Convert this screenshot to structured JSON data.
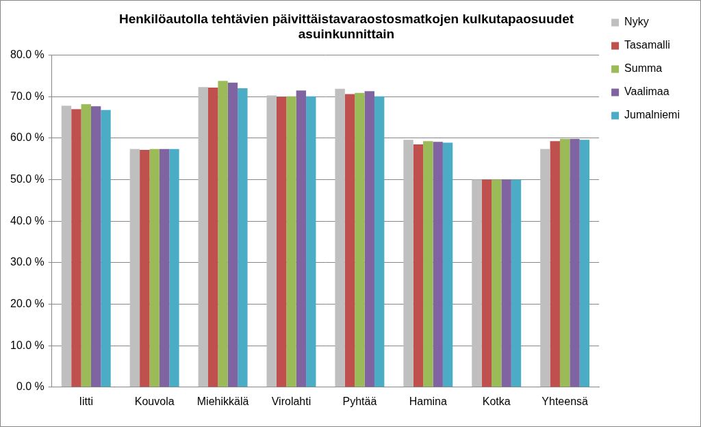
{
  "chart_data": {
    "type": "bar",
    "title": [
      "Henkilöautolla tehtävien päivittäistavaraostosmatkojen kulkutapaosuudet",
      "asuinkunnittain"
    ],
    "categories": [
      "Iitti",
      "Kouvola",
      "Miehikkälä",
      "Virolahti",
      "Pyhtää",
      "Hamina",
      "Kotka",
      "Yhteensä"
    ],
    "series": [
      {
        "name": "Nyky",
        "color": "#bfbfbf",
        "values": [
          67.8,
          57.4,
          72.3,
          70.3,
          71.9,
          59.6,
          50.0,
          57.4
        ]
      },
      {
        "name": "Tasamalli",
        "color": "#c0504d",
        "values": [
          67.0,
          57.2,
          72.2,
          69.9,
          70.6,
          58.5,
          50.0,
          59.3
        ]
      },
      {
        "name": "Summa",
        "color": "#9bbb59",
        "values": [
          68.2,
          57.4,
          73.8,
          70.1,
          70.9,
          59.3,
          50.0,
          59.8
        ]
      },
      {
        "name": "Vaalimaa",
        "color": "#8064a2",
        "values": [
          67.7,
          57.4,
          73.4,
          71.5,
          71.3,
          59.1,
          50.0,
          59.8
        ]
      },
      {
        "name": "Jumalniemi",
        "color": "#4bacc6",
        "values": [
          66.8,
          57.4,
          72.0,
          70.1,
          70.1,
          58.9,
          50.0,
          59.6
        ]
      }
    ],
    "ylim": [
      0,
      80
    ],
    "yticks": [
      {
        "value": 0,
        "label": "0.0 %"
      },
      {
        "value": 10,
        "label": "10.0 %"
      },
      {
        "value": 20,
        "label": "20.0 %"
      },
      {
        "value": 30,
        "label": "30.0 %"
      },
      {
        "value": 40,
        "label": "40.0 %"
      },
      {
        "value": 50,
        "label": "50.0 %"
      },
      {
        "value": 60,
        "label": "60.0 %"
      },
      {
        "value": 70,
        "label": "70.0 %"
      },
      {
        "value": 80,
        "label": "80.0 %"
      }
    ],
    "grid": true,
    "legend": "right"
  }
}
